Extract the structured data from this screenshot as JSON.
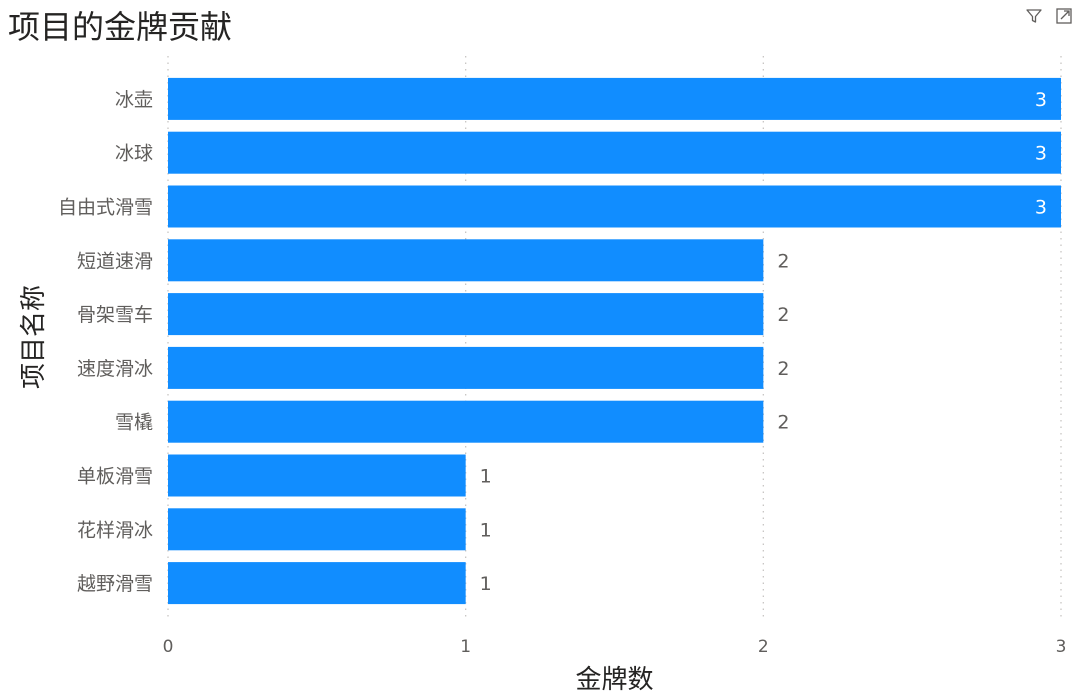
{
  "chart_data": {
    "type": "bar",
    "orientation": "horizontal",
    "title": "项目的金牌贡献",
    "xlabel": "金牌数",
    "ylabel": "项目名称",
    "categories": [
      "冰壶",
      "冰球",
      "自由式滑雪",
      "短道速滑",
      "骨架雪车",
      "速度滑冰",
      "雪橇",
      "单板滑雪",
      "花样滑冰",
      "越野滑雪"
    ],
    "values": [
      3,
      3,
      3,
      2,
      2,
      2,
      2,
      1,
      1,
      1
    ],
    "xlim": [
      0,
      3
    ],
    "xticks": [
      "0",
      "1",
      "2",
      "3"
    ],
    "grid": true,
    "bar_color": "#118dff",
    "label_inside_color": "#ffffff",
    "label_outside_color": "#605e5c"
  },
  "header": {
    "icons": [
      "filter-icon",
      "focus-mode-icon"
    ]
  }
}
